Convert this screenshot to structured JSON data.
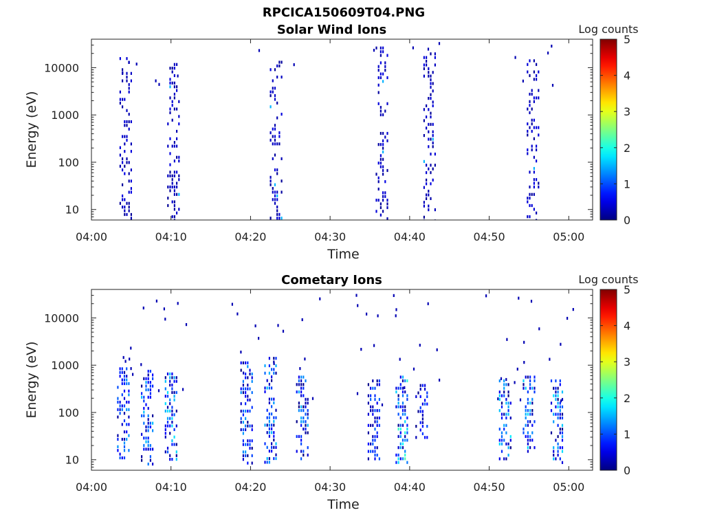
{
  "figure": {
    "title": "RPCICA150609T04.PNG"
  },
  "chart_data": [
    {
      "type": "heatmap",
      "title": "Solar Wind Ions",
      "xlabel": "Time",
      "ylabel": "Energy (eV)",
      "x_ticks": [
        "04:00",
        "04:10",
        "04:20",
        "04:30",
        "04:40",
        "04:50",
        "05:00"
      ],
      "x_range_minutes": [
        0,
        63
      ],
      "y_scale": "log",
      "y_ticks": [
        "10",
        "100",
        "1000",
        "10000"
      ],
      "y_range": [
        6,
        40000
      ],
      "colorbar": {
        "label": "Log counts",
        "range": [
          0,
          5
        ],
        "ticks": [
          "0",
          "1",
          "2",
          "3",
          "4",
          "5"
        ],
        "colormap": "jet"
      },
      "grid": false,
      "bursts": [
        {
          "minute": 4.3,
          "e_min": 6,
          "e_max": 20000,
          "level": 0.6
        },
        {
          "minute": 10.3,
          "e_min": 6,
          "e_max": 15000,
          "level": 0.7
        },
        {
          "minute": 23.2,
          "e_min": 6,
          "e_max": 14000,
          "level": 0.6
        },
        {
          "minute": 36.5,
          "e_min": 6,
          "e_max": 28000,
          "level": 0.6
        },
        {
          "minute": 42.5,
          "e_min": 6,
          "e_max": 21000,
          "level": 0.6
        },
        {
          "minute": 55.5,
          "e_min": 6,
          "e_max": 15000,
          "level": 0.6
        }
      ]
    },
    {
      "type": "heatmap",
      "title": "Cometary Ions",
      "xlabel": "Time",
      "ylabel": "Energy (eV)",
      "x_ticks": [
        "04:00",
        "04:10",
        "04:20",
        "04:30",
        "04:40",
        "04:50",
        "05:00"
      ],
      "x_range_minutes": [
        0,
        63
      ],
      "y_scale": "log",
      "y_ticks": [
        "10",
        "100",
        "1000",
        "10000"
      ],
      "y_range": [
        6,
        40000
      ],
      "colorbar": {
        "label": "Log counts",
        "range": [
          0,
          5
        ],
        "ticks": [
          "0",
          "1",
          "2",
          "3",
          "4",
          "5"
        ],
        "colormap": "jet"
      },
      "grid": false,
      "bursts": [
        {
          "minute": 4.0,
          "e_min": 10,
          "e_max": 900,
          "level": 1.4
        },
        {
          "minute": 7.0,
          "e_min": 8,
          "e_max": 800,
          "level": 1.6
        },
        {
          "minute": 10.0,
          "e_min": 10,
          "e_max": 700,
          "level": 1.8
        },
        {
          "minute": 19.5,
          "e_min": 8,
          "e_max": 1200,
          "level": 1.4
        },
        {
          "minute": 22.5,
          "e_min": 8,
          "e_max": 1500,
          "level": 1.6
        },
        {
          "minute": 26.5,
          "e_min": 10,
          "e_max": 600,
          "level": 1.5
        },
        {
          "minute": 35.5,
          "e_min": 10,
          "e_max": 500,
          "level": 1.2
        },
        {
          "minute": 39.0,
          "e_min": 8,
          "e_max": 600,
          "level": 2.3
        },
        {
          "minute": 41.5,
          "e_min": 30,
          "e_max": 400,
          "level": 1.2
        },
        {
          "minute": 52.0,
          "e_min": 10,
          "e_max": 500,
          "level": 1.8
        },
        {
          "minute": 55.0,
          "e_min": 15,
          "e_max": 600,
          "level": 1.7
        },
        {
          "minute": 58.5,
          "e_min": 8,
          "e_max": 500,
          "level": 1.8
        }
      ]
    }
  ]
}
